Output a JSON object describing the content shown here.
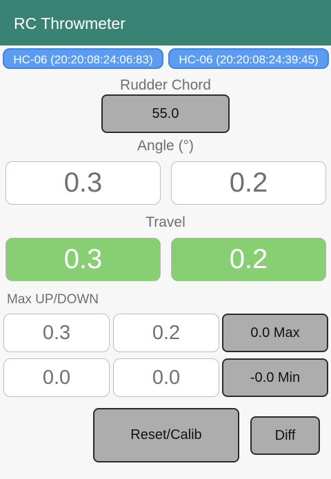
{
  "app_bar": {
    "title": "RC Throwmeter"
  },
  "devices": [
    {
      "label": "HC-06 (20:20:08:24:06:83)"
    },
    {
      "label": "HC-06 (20:20:08:24:39:45)"
    }
  ],
  "rudder_chord": {
    "label": "Rudder Chord",
    "value": "55.0"
  },
  "angle": {
    "label": "Angle (°)",
    "left": "0.3",
    "right": "0.2"
  },
  "travel": {
    "label": "Travel",
    "left": "0.3",
    "right": "0.2"
  },
  "max_updown": {
    "label": "Max UP/DOWN",
    "max_left": "0.3",
    "max_right": "0.2",
    "max_button": "0.0 Max",
    "min_left": "0.0",
    "min_right": "0.0",
    "min_button": "-0.0 Min"
  },
  "actions": {
    "reset_label": "Reset/Calib",
    "diff_label": "Diff"
  },
  "colors": {
    "app_bar": "#3a8273",
    "device_button": "#5b9cf0",
    "travel_green": "#88cf73",
    "gray_button": "#adadad"
  }
}
